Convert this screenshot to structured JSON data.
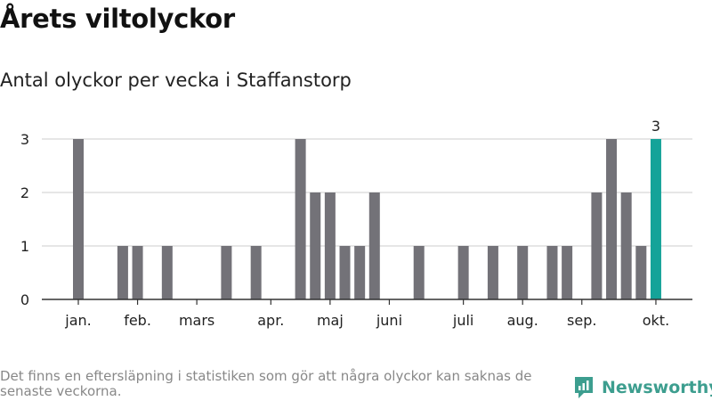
{
  "header": {
    "title": "Årets viltolyckor",
    "subtitle": "Antal olyckor per vecka i Staffanstorp"
  },
  "footer": {
    "note": "Det finns en eftersläpning i statistiken som gör att några olyckor kan saknas de senaste veckorna.",
    "brand": "Newsworthy"
  },
  "colors": {
    "bar": "#737278",
    "highlight": "#15a399",
    "grid": "#dddddd",
    "brand": "#3d9e8f"
  },
  "chart_data": {
    "type": "bar",
    "x_unit": "week",
    "x": [
      1,
      2,
      3,
      4,
      5,
      6,
      7,
      8,
      9,
      10,
      11,
      12,
      13,
      14,
      15,
      16,
      17,
      18,
      19,
      20,
      21,
      22,
      23,
      24,
      25,
      26,
      27,
      28,
      29,
      30,
      31,
      32,
      33,
      34,
      35,
      36,
      37,
      38,
      39,
      40
    ],
    "values": [
      3,
      0,
      0,
      1,
      1,
      0,
      1,
      0,
      0,
      0,
      1,
      0,
      1,
      0,
      0,
      3,
      2,
      2,
      1,
      1,
      2,
      0,
      0,
      1,
      0,
      0,
      1,
      0,
      1,
      0,
      1,
      0,
      1,
      1,
      0,
      2,
      3,
      2,
      1,
      3
    ],
    "highlight_index": 39,
    "highlight_label": "3",
    "y_ticks": [
      0,
      1,
      2,
      3
    ],
    "ylim": [
      0,
      3
    ],
    "x_tick_labels": [
      {
        "label": "jan.",
        "week": 1
      },
      {
        "label": "feb.",
        "week": 5
      },
      {
        "label": "mars",
        "week": 9
      },
      {
        "label": "apr.",
        "week": 14
      },
      {
        "label": "maj",
        "week": 18
      },
      {
        "label": "juni",
        "week": 22
      },
      {
        "label": "juli",
        "week": 27
      },
      {
        "label": "aug.",
        "week": 31
      },
      {
        "label": "sep.",
        "week": 35
      },
      {
        "label": "okt.",
        "week": 40
      }
    ],
    "grid": true,
    "title": "Årets viltolyckor",
    "subtitle": "Antal olyckor per vecka i Staffanstorp"
  }
}
